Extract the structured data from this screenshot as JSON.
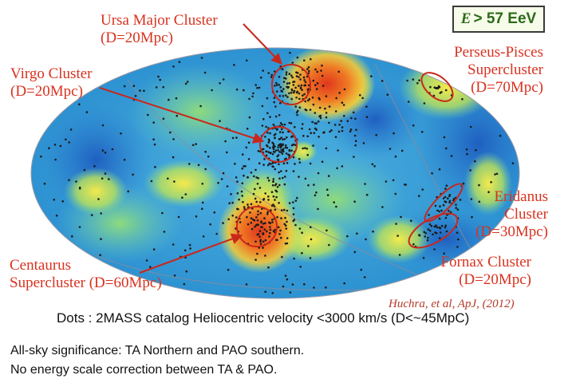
{
  "energy_label": {
    "symbol": "E",
    "text": "> 57 EeV"
  },
  "clusters": [
    {
      "id": "ursa-major",
      "name": "Ursa Major Cluster",
      "distance": "(D=20Mpc)"
    },
    {
      "id": "virgo",
      "name": "Virgo Cluster",
      "distance": "(D=20Mpc)"
    },
    {
      "id": "perseus-pisces",
      "name": "Perseus-Pisces",
      "name2": "Supercluster",
      "distance": "(D=70Mpc)"
    },
    {
      "id": "eridanus",
      "name": "Eridanus",
      "name2": "Cluster",
      "distance": "(D=30Mpc)"
    },
    {
      "id": "fornax",
      "name": "Fornax Cluster",
      "distance": "(D=20Mpc)"
    },
    {
      "id": "centaurus",
      "name": "Centaurus",
      "name2": "Supercluster (D=60Mpc)"
    }
  ],
  "reference": "Huchra, et al, ApJ, (2012)",
  "dots_caption": "Dots : 2MASS catalog Heliocentric velocity <3000 km/s (D<~45MpC)",
  "notes": [
    "All-sky significance: TA Northern and PAO southern.",
    "No energy scale correction between TA & PAO."
  ],
  "colors": {
    "label_red": "#d8321f",
    "circle_red": "#c8281c",
    "energy_green": "#2d6a1a"
  }
}
